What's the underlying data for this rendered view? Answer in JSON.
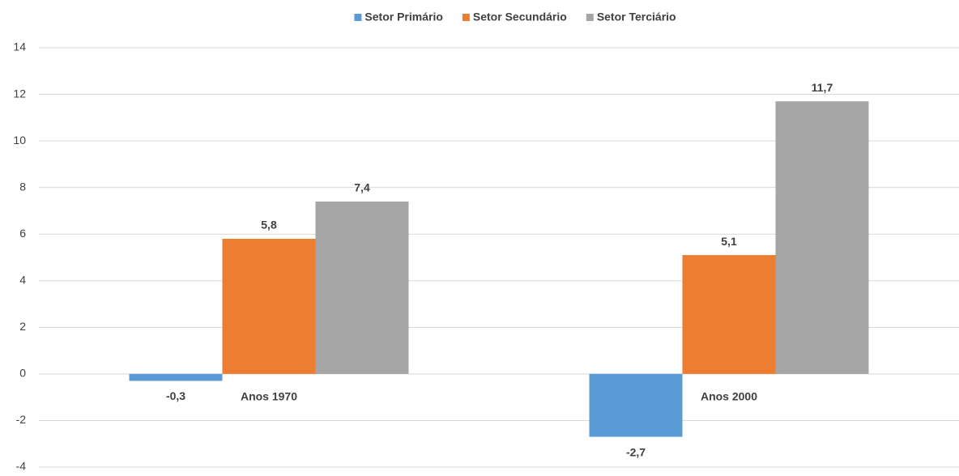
{
  "chart_data": {
    "type": "bar",
    "categories": [
      "Anos 1970",
      "Anos 2000"
    ],
    "series": [
      {
        "name": "Setor Primário",
        "color": "#5b9bd5",
        "values": [
          -0.3,
          -2.7
        ],
        "value_labels": [
          "-0,3",
          "-2,7"
        ]
      },
      {
        "name": "Setor Secundário",
        "color": "#ed7d31",
        "values": [
          5.8,
          5.1
        ],
        "value_labels": [
          "5,8",
          "5,1"
        ]
      },
      {
        "name": "Setor Terciário",
        "color": "#a5a5a5",
        "values": [
          7.4,
          11.7
        ],
        "value_labels": [
          "7,4",
          "11,7"
        ]
      }
    ],
    "ylim": [
      -4,
      14
    ],
    "yticks": [
      -4,
      -2,
      0,
      2,
      4,
      6,
      8,
      10,
      12,
      14
    ],
    "grid": true,
    "legend": "top"
  }
}
